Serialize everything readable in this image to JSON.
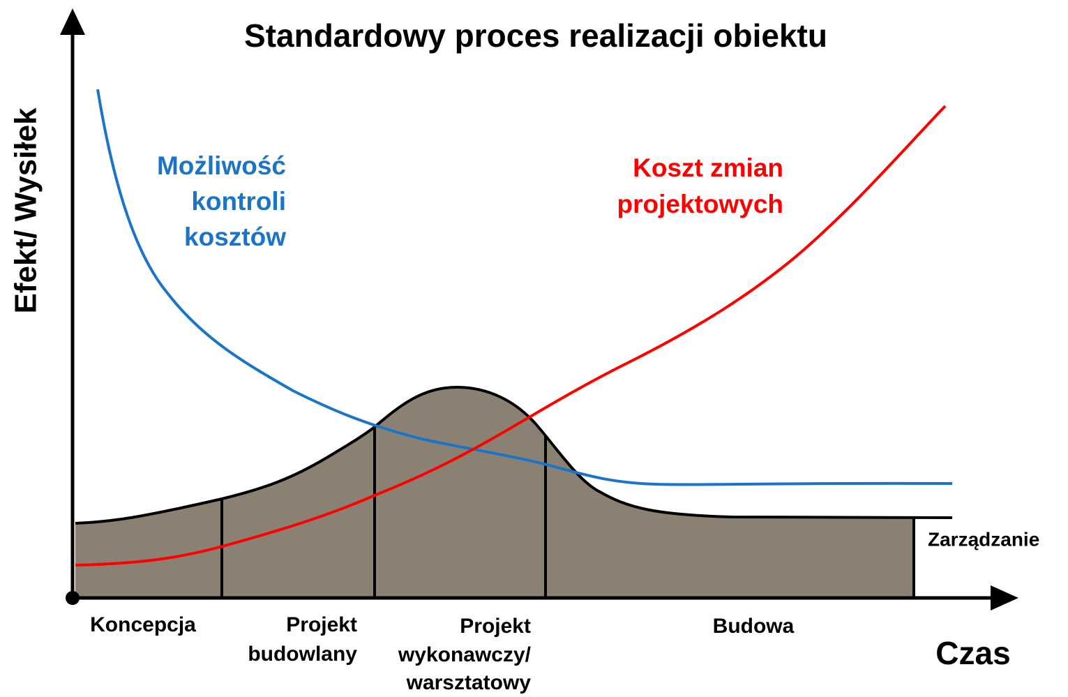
{
  "title": "Standardowy proces realizacji obiektu",
  "y_axis_label": "Efekt/ Wysiłek",
  "x_axis_label": "Czas",
  "curves": [
    {
      "label": [
        "Możliwość",
        "kontroli",
        "kosztów"
      ]
    },
    {
      "label": [
        "Koszt zmian",
        "projektowych"
      ]
    },
    {
      "label": [
        "Zarządzanie"
      ]
    }
  ],
  "phases": [
    {
      "label": [
        "Koncepcja"
      ]
    },
    {
      "label": [
        "Projekt",
        "budowlany"
      ]
    },
    {
      "label": [
        "Projekt",
        "wykonawczy/",
        "warsztatowy"
      ]
    },
    {
      "label": [
        "Budowa"
      ]
    }
  ]
}
